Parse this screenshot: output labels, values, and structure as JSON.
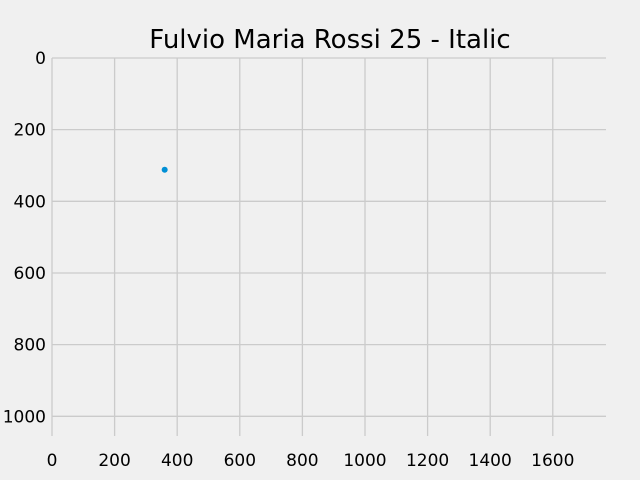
{
  "chart_data": {
    "type": "scatter",
    "title": "Fulvio Maria Rossi 25 - Italic",
    "xlabel": "",
    "ylabel": "",
    "xlim": [
      0,
      1770
    ],
    "ylim": [
      1055,
      0
    ],
    "y_inverted": true,
    "grid": true,
    "x_ticks": [
      0,
      200,
      400,
      600,
      800,
      1000,
      1200,
      1400,
      1600
    ],
    "y_ticks": [
      0,
      200,
      400,
      600,
      800,
      1000
    ],
    "series": [
      {
        "color": "#008fd5",
        "points": [
          {
            "x": 360,
            "y": 312
          }
        ]
      }
    ]
  }
}
